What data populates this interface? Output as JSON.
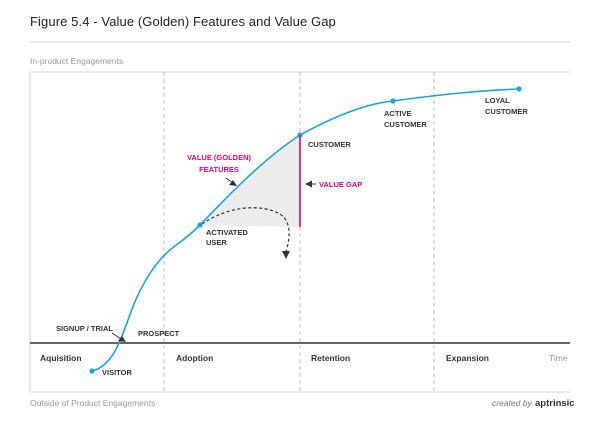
{
  "title": "Figure 5.4 - Value (Golden) Features and Value Gap",
  "y_axis_top_label": "In-product Engagements",
  "y_axis_bottom_label": "Outside of Product Engagements",
  "x_axis_label": "Time",
  "stages": [
    "Aquisition",
    "Adoption",
    "Retention",
    "Expansion"
  ],
  "milestones": {
    "visitor": "VISITOR",
    "signup": "SIGNUP / TRIAL",
    "prospect": "PROSPECT",
    "activated": [
      "ACTIVATED",
      "USER"
    ],
    "customer": "CUSTOMER",
    "active_customer": [
      "ACTIVE",
      "CUSTOMER"
    ],
    "loyal_customer": [
      "LOYAL",
      "CUSTOMER"
    ]
  },
  "callouts": {
    "golden_features": [
      "VALUE (GOLDEN)",
      "FEATURES"
    ],
    "value_gap": "VALUE GAP"
  },
  "credit": {
    "prefix": "created by",
    "brand": "aptrinsic"
  },
  "colors": {
    "curve": "#1aa6dc",
    "accent": "#e5007e",
    "grid": "#bdbdbd",
    "axis": "#333333",
    "gap_fill": "#ededed",
    "text": "#333333",
    "muted": "#999999"
  }
}
